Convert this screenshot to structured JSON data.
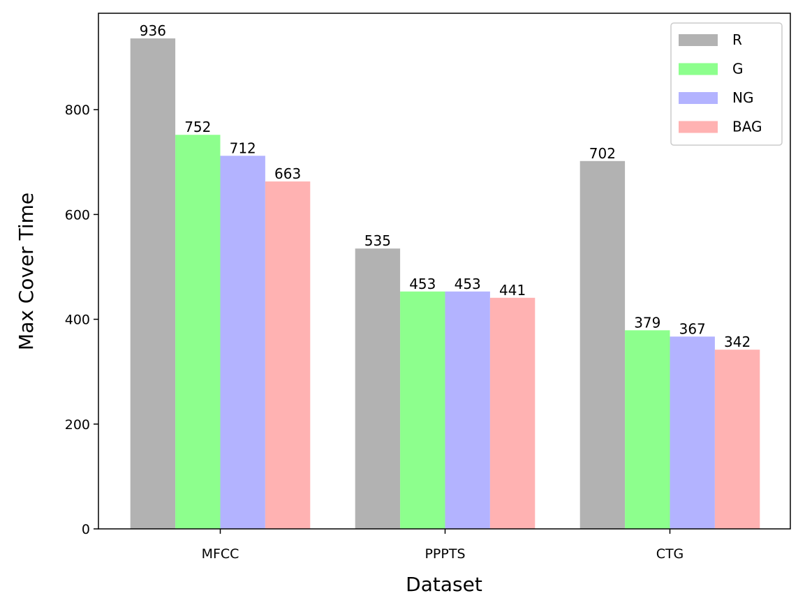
{
  "chart_data": {
    "type": "bar",
    "title": "",
    "xlabel": "Dataset",
    "ylabel": "Max Cover Time",
    "categories": [
      "MFCC",
      "PPPTS",
      "CTG"
    ],
    "series": [
      {
        "name": "R",
        "color": "#b2b2b2",
        "values": [
          936,
          535,
          702
        ]
      },
      {
        "name": "G",
        "color": "#8dff8d",
        "values": [
          752,
          453,
          379
        ]
      },
      {
        "name": "NG",
        "color": "#b3b3ff",
        "values": [
          712,
          453,
          367
        ]
      },
      {
        "name": "BAG",
        "color": "#ffb2b2",
        "values": [
          663,
          441,
          342
        ]
      }
    ],
    "ylim": [
      0,
      984
    ],
    "yticks": [
      0,
      200,
      400,
      600,
      800
    ],
    "ytick_labels": [
      "0",
      "200",
      "400",
      "600",
      "800"
    ],
    "legend_position": "top-right",
    "grid": false
  }
}
